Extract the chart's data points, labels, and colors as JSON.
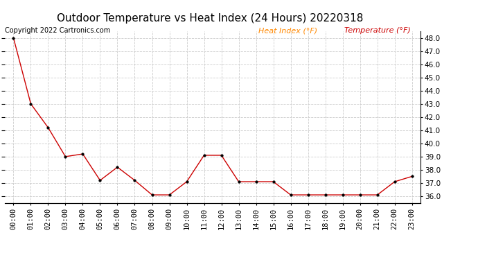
{
  "title": "Outdoor Temperature vs Heat Index (24 Hours) 20220318",
  "copyright_text": "Copyright 2022 Cartronics.com",
  "legend_heat_index": "Heat Index (°F)",
  "legend_temperature": "Temperature (°F)",
  "x_labels": [
    "00:00",
    "01:00",
    "02:00",
    "03:00",
    "04:00",
    "05:00",
    "06:00",
    "07:00",
    "08:00",
    "09:00",
    "10:00",
    "11:00",
    "12:00",
    "13:00",
    "14:00",
    "15:00",
    "16:00",
    "17:00",
    "18:00",
    "19:00",
    "20:00",
    "21:00",
    "22:00",
    "23:00"
  ],
  "temperature": [
    48.0,
    43.0,
    41.2,
    39.0,
    39.2,
    37.2,
    38.2,
    37.2,
    36.1,
    36.1,
    37.1,
    39.1,
    39.1,
    37.1,
    37.1,
    37.1,
    36.1,
    36.1,
    36.1,
    36.1,
    36.1,
    36.1,
    37.1,
    37.5
  ],
  "heat_index": [
    48.0,
    43.0,
    41.2,
    39.0,
    39.2,
    37.2,
    38.2,
    37.2,
    36.1,
    36.1,
    37.1,
    39.1,
    39.1,
    37.1,
    37.1,
    37.1,
    36.1,
    36.1,
    36.1,
    36.1,
    36.1,
    36.1,
    37.1,
    37.5
  ],
  "line_color": "#cc0000",
  "marker_color": "#000000",
  "heat_index_legend_color": "#ff8800",
  "temperature_legend_color": "#cc0000",
  "background_color": "#ffffff",
  "plot_bg_color": "#ffffff",
  "grid_color": "#cccccc",
  "ylim": [
    35.5,
    48.5
  ],
  "yticks": [
    36.0,
    37.0,
    38.0,
    39.0,
    40.0,
    41.0,
    42.0,
    43.0,
    44.0,
    45.0,
    46.0,
    47.0,
    48.0
  ],
  "title_fontsize": 11,
  "legend_fontsize": 8,
  "copyright_fontsize": 7,
  "tick_fontsize": 7.5
}
